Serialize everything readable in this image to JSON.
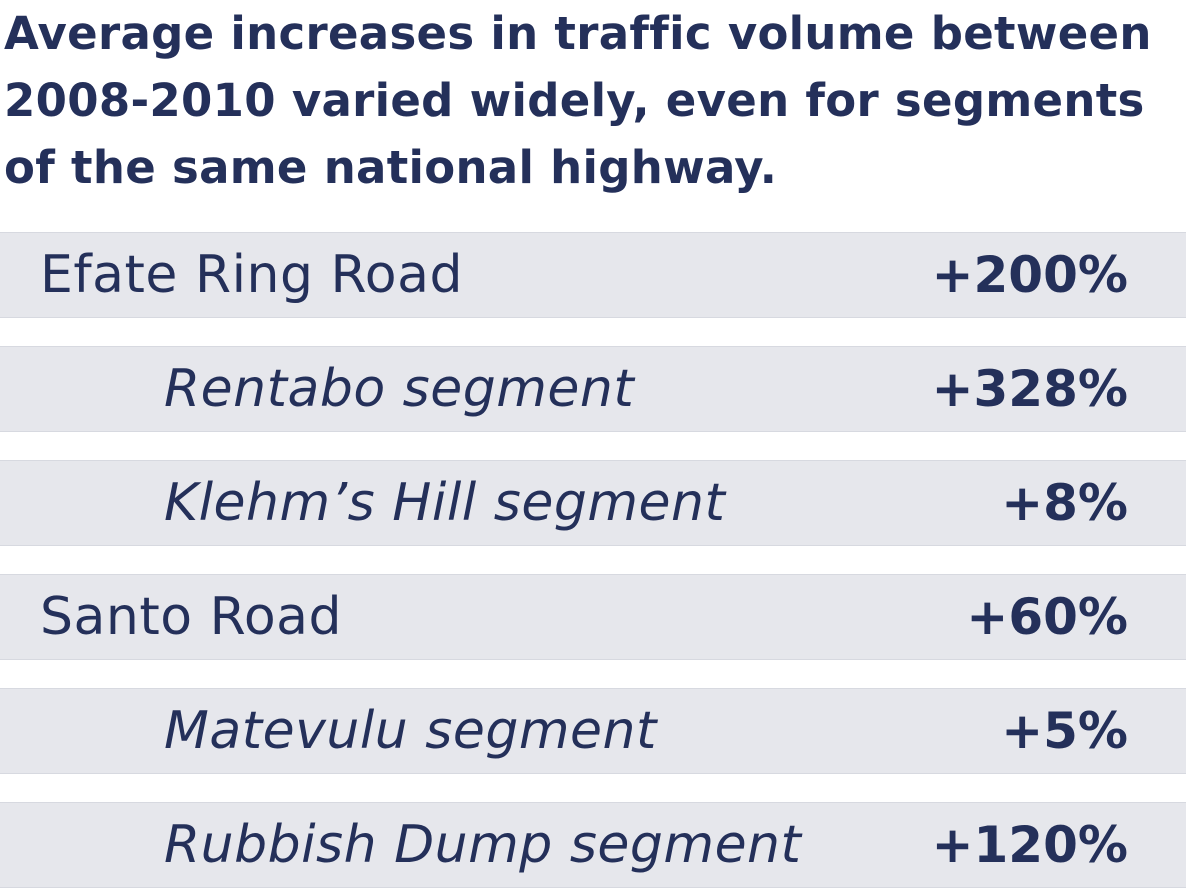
{
  "title": "Average increases in traffic volume between 2008-2010 varied widely, even for segments of the same national highway.",
  "chart_data": {
    "type": "table",
    "title": "Average increases in traffic volume between 2008-2010 varied widely, even for segments of the same national highway.",
    "rows": [
      {
        "label": "Efate Ring Road",
        "value_text": "+200%",
        "value": 200,
        "level": 0
      },
      {
        "label": "Rentabo segment",
        "value_text": "+328%",
        "value": 328,
        "level": 1
      },
      {
        "label": "Klehm’s Hill segment",
        "value_text": "+8%",
        "value": 8,
        "level": 1
      },
      {
        "label": "Santo Road",
        "value_text": "+60%",
        "value": 60,
        "level": 0
      },
      {
        "label": "Matevulu segment",
        "value_text": "+5%",
        "value": 5,
        "level": 1
      },
      {
        "label": "Rubbish Dump segment",
        "value_text": "+120%",
        "value": 120,
        "level": 1
      }
    ]
  },
  "colors": {
    "text": "#24305a",
    "row_background": "#e6e7ec",
    "background": "#ffffff"
  }
}
